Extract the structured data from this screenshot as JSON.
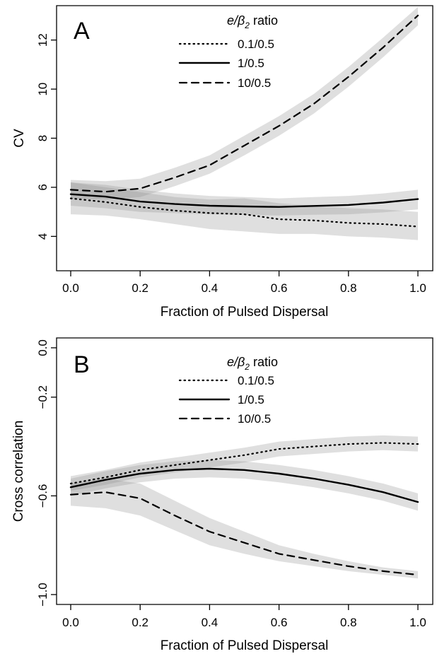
{
  "chart_data": [
    {
      "type": "line",
      "panel_label": "A",
      "xlabel": "Fraction of Pulsed Dispersal",
      "ylabel": "CV",
      "xlim": [
        0.0,
        1.0
      ],
      "ylim": [
        2.6,
        13.4
      ],
      "xticks": [
        0.0,
        0.2,
        0.4,
        0.6,
        0.8,
        1.0
      ],
      "xtick_labels": [
        "0.0",
        "0.2",
        "0.4",
        "0.6",
        "0.8",
        "1.0"
      ],
      "yticks": [
        4,
        6,
        8,
        10,
        12
      ],
      "ytick_labels": [
        "4",
        "6",
        "8",
        "10",
        "12"
      ],
      "grid": false,
      "legend": {
        "placement": "top-center",
        "title_italic": "e/β",
        "title_sub": "2",
        "title_rest": " ratio",
        "entries": [
          "0.1/0.5",
          "1/0.5",
          "10/0.5"
        ]
      },
      "x": [
        0.0,
        0.1,
        0.2,
        0.3,
        0.4,
        0.5,
        0.6,
        0.7,
        0.8,
        0.9,
        1.0
      ],
      "series": [
        {
          "name": "0.1/0.5",
          "style": "dotted",
          "values": [
            5.55,
            5.4,
            5.2,
            5.05,
            4.95,
            4.9,
            4.7,
            4.65,
            4.55,
            4.5,
            4.4
          ],
          "lower": [
            4.9,
            4.85,
            4.7,
            4.5,
            4.3,
            4.2,
            4.1,
            4.1,
            4.0,
            3.95,
            3.85
          ],
          "upper": [
            6.2,
            6.0,
            5.8,
            5.6,
            5.5,
            5.55,
            5.35,
            5.25,
            5.15,
            5.1,
            5.0
          ]
        },
        {
          "name": "1/0.5",
          "style": "solid",
          "values": [
            5.72,
            5.62,
            5.42,
            5.32,
            5.25,
            5.22,
            5.2,
            5.24,
            5.28,
            5.38,
            5.52
          ],
          "lower": [
            5.25,
            5.15,
            5.0,
            4.95,
            4.9,
            4.88,
            4.85,
            4.88,
            4.9,
            4.98,
            5.1
          ],
          "upper": [
            6.2,
            6.1,
            5.9,
            5.75,
            5.65,
            5.6,
            5.55,
            5.6,
            5.65,
            5.75,
            5.9
          ]
        },
        {
          "name": "10/0.5",
          "style": "dashed",
          "values": [
            5.9,
            5.82,
            5.95,
            6.4,
            6.9,
            7.7,
            8.5,
            9.4,
            10.5,
            11.7,
            13.0
          ],
          "lower": [
            5.55,
            5.5,
            5.6,
            6.05,
            6.55,
            7.3,
            8.1,
            9.0,
            10.1,
            11.3,
            12.6
          ],
          "upper": [
            6.3,
            6.25,
            6.35,
            6.8,
            7.3,
            8.1,
            8.9,
            9.8,
            10.9,
            12.1,
            13.35
          ]
        }
      ]
    },
    {
      "type": "line",
      "panel_label": "B",
      "xlabel": "Fraction of Pulsed Dispersal",
      "ylabel": "Cross correlation",
      "xlim": [
        0.0,
        1.0
      ],
      "ylim": [
        -1.04,
        0.04
      ],
      "xticks": [
        0.0,
        0.2,
        0.4,
        0.6,
        0.8,
        1.0
      ],
      "xtick_labels": [
        "0.0",
        "0.2",
        "0.4",
        "0.6",
        "0.8",
        "1.0"
      ],
      "yticks": [
        -1.0,
        -0.6,
        -0.2,
        0.0
      ],
      "ytick_labels": [
        "−1.0",
        "−0.6",
        "−0.2",
        "0.0"
      ],
      "grid": false,
      "legend": {
        "placement": "top-center",
        "title_italic": "e/β",
        "title_sub": "2",
        "title_rest": " ratio",
        "entries": [
          "0.1/0.5",
          "1/0.5",
          "10/0.5"
        ]
      },
      "x": [
        0.0,
        0.1,
        0.2,
        0.3,
        0.4,
        0.5,
        0.6,
        0.7,
        0.8,
        0.9,
        1.0
      ],
      "series": [
        {
          "name": "0.1/0.5",
          "style": "dotted",
          "values": [
            -0.55,
            -0.525,
            -0.495,
            -0.475,
            -0.455,
            -0.435,
            -0.41,
            -0.4,
            -0.39,
            -0.385,
            -0.39
          ],
          "lower": [
            -0.58,
            -0.555,
            -0.525,
            -0.505,
            -0.485,
            -0.465,
            -0.44,
            -0.43,
            -0.42,
            -0.415,
            -0.42
          ],
          "upper": [
            -0.52,
            -0.495,
            -0.465,
            -0.445,
            -0.425,
            -0.405,
            -0.38,
            -0.37,
            -0.36,
            -0.355,
            -0.36
          ]
        },
        {
          "name": "1/0.5",
          "style": "solid",
          "values": [
            -0.565,
            -0.535,
            -0.51,
            -0.495,
            -0.49,
            -0.495,
            -0.51,
            -0.53,
            -0.555,
            -0.585,
            -0.625
          ],
          "lower": [
            -0.6,
            -0.57,
            -0.545,
            -0.53,
            -0.525,
            -0.53,
            -0.545,
            -0.565,
            -0.59,
            -0.62,
            -0.66
          ],
          "upper": [
            -0.53,
            -0.5,
            -0.475,
            -0.46,
            -0.455,
            -0.46,
            -0.475,
            -0.495,
            -0.52,
            -0.55,
            -0.59
          ]
        },
        {
          "name": "10/0.5",
          "style": "dashed",
          "values": [
            -0.595,
            -0.585,
            -0.61,
            -0.68,
            -0.745,
            -0.79,
            -0.835,
            -0.86,
            -0.885,
            -0.905,
            -0.92
          ],
          "lower": [
            -0.64,
            -0.65,
            -0.68,
            -0.74,
            -0.8,
            -0.835,
            -0.865,
            -0.885,
            -0.905,
            -0.92,
            -0.935
          ],
          "upper": [
            -0.55,
            -0.53,
            -0.55,
            -0.62,
            -0.69,
            -0.745,
            -0.8,
            -0.835,
            -0.865,
            -0.89,
            -0.905
          ]
        }
      ]
    }
  ]
}
